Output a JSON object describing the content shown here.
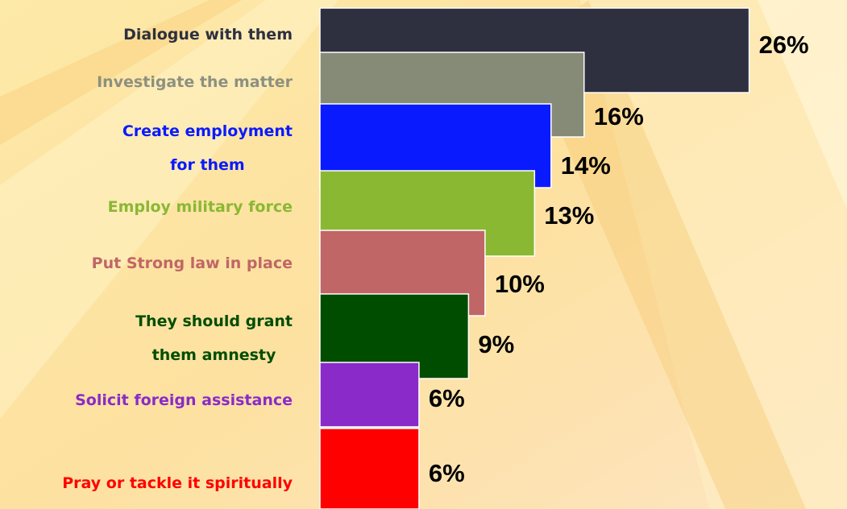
{
  "chart_data": {
    "type": "bar",
    "categories": [
      "Dialogue with them",
      "Investigate the matter",
      "Create employment\nfor them",
      "Employ military force",
      "Put Strong law in place",
      "They should grant\nthem amnesty",
      "Solicit foreign assistance",
      "Pray or tackle it spiritually"
    ],
    "values": [
      26,
      16,
      14,
      13,
      10,
      9,
      6,
      6
    ],
    "value_labels": [
      "26%",
      "16%",
      "14%",
      "13%",
      "10%",
      "9%",
      "6%",
      "6%"
    ],
    "colors": [
      "#2e3040",
      "#868b77",
      "#0a1aff",
      "#8ab833",
      "#c06666",
      "#004d00",
      "#8a2bc9",
      "#ff0000"
    ],
    "xlim": [
      0,
      31
    ]
  }
}
